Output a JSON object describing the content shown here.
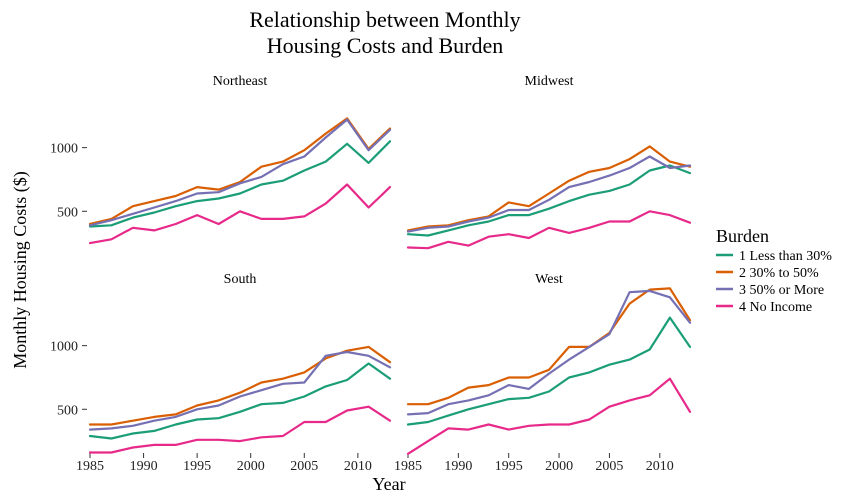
{
  "chart_data": {
    "type": "line",
    "title_lines": [
      "Relationship between Monthly",
      "Housing Costs and Burden"
    ],
    "xlabel": "Year",
    "ylabel": "Monthly Housing Costs ($)",
    "x": [
      1985,
      1987,
      1989,
      1991,
      1993,
      1995,
      1997,
      1999,
      2001,
      2003,
      2005,
      2007,
      2009,
      2011,
      2013
    ],
    "xlim": [
      1985,
      2013
    ],
    "ylim": [
      180,
      1280
    ],
    "x_ticks": [
      1985,
      1990,
      1995,
      2000,
      2005,
      2010
    ],
    "y_ticks": [
      500,
      1000
    ],
    "grid": false,
    "legend": {
      "title": "Burden",
      "position": "right",
      "entries": [
        {
          "label": "1 Less than 30%",
          "color": "#1b9e77"
        },
        {
          "label": "2 30% to 50%",
          "color": "#d95f02"
        },
        {
          "label": "3 50% or More",
          "color": "#7570b3"
        },
        {
          "label": "4 No Income",
          "color": "#e7298a"
        }
      ]
    },
    "facets": [
      {
        "title": "Northeast",
        "series": [
          {
            "name": "1 Less than 30%",
            "values": [
              380,
              390,
              450,
              490,
              540,
              580,
              600,
              640,
              710,
              740,
              820,
              890,
              1030,
              880,
              1050
            ]
          },
          {
            "name": "2 30% to 50%",
            "values": [
              400,
              440,
              540,
              580,
              620,
              690,
              670,
              730,
              850,
              890,
              980,
              1110,
              1230,
              990,
              1150
            ]
          },
          {
            "name": "3 50% or More",
            "values": [
              390,
              430,
              480,
              530,
              580,
              640,
              650,
              720,
              770,
              870,
              930,
              1080,
              1220,
              980,
              1140
            ]
          },
          {
            "name": "4 No Income",
            "values": [
              250,
              280,
              370,
              350,
              400,
              470,
              400,
              500,
              440,
              440,
              460,
              560,
              710,
              530,
              690
            ]
          }
        ]
      },
      {
        "title": "Midwest",
        "series": [
          {
            "name": "1 Less than 30%",
            "values": [
              320,
              310,
              350,
              390,
              420,
              470,
              470,
              520,
              580,
              630,
              660,
              710,
              820,
              860,
              800
            ]
          },
          {
            "name": "2 30% to 50%",
            "values": [
              350,
              380,
              390,
              430,
              460,
              570,
              540,
              640,
              740,
              810,
              840,
              910,
              1010,
              890,
              850
            ]
          },
          {
            "name": "3 50% or More",
            "values": [
              340,
              370,
              380,
              420,
              450,
              510,
              510,
              590,
              690,
              730,
              780,
              840,
              930,
              840,
              860
            ]
          },
          {
            "name": "4 No Income",
            "values": [
              215,
              210,
              260,
              230,
              300,
              320,
              290,
              370,
              330,
              370,
              420,
              420,
              500,
              470,
              410
            ]
          }
        ]
      },
      {
        "title": "South",
        "series": [
          {
            "name": "1 Less than 30%",
            "values": [
              290,
              270,
              310,
              330,
              380,
              420,
              430,
              480,
              540,
              550,
              600,
              680,
              730,
              860,
              740
            ]
          },
          {
            "name": "2 30% to 50%",
            "values": [
              380,
              380,
              410,
              440,
              460,
              530,
              570,
              630,
              710,
              740,
              790,
              900,
              960,
              990,
              870
            ]
          },
          {
            "name": "3 50% or More",
            "values": [
              340,
              350,
              370,
              410,
              440,
              500,
              530,
              600,
              650,
              700,
              710,
              920,
              950,
              920,
              830
            ]
          },
          {
            "name": "4 No Income",
            "values": [
              160,
              160,
              200,
              220,
              220,
              260,
              260,
              250,
              280,
              290,
              400,
              400,
              490,
              520,
              410
            ]
          }
        ]
      },
      {
        "title": "West",
        "series": [
          {
            "name": "1 Less than 30%",
            "values": [
              380,
              400,
              450,
              500,
              540,
              580,
              590,
              640,
              750,
              790,
              850,
              890,
              970,
              1220,
              990
            ]
          },
          {
            "name": "2 30% to 50%",
            "values": [
              540,
              540,
              590,
              670,
              690,
              750,
              750,
              810,
              990,
              990,
              1100,
              1330,
              1440,
              1450,
              1200
            ]
          },
          {
            "name": "3 50% or More",
            "values": [
              460,
              470,
              540,
              570,
              610,
              690,
              660,
              780,
              890,
              990,
              1090,
              1420,
              1430,
              1380,
              1180
            ]
          },
          {
            "name": "4 No Income",
            "values": [
              150,
              250,
              350,
              340,
              380,
              340,
              370,
              380,
              380,
              420,
              520,
              570,
              610,
              740,
              480
            ]
          }
        ]
      }
    ]
  }
}
